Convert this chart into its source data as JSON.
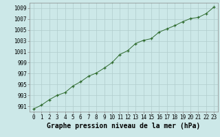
{
  "x": [
    0,
    1,
    2,
    3,
    4,
    5,
    6,
    7,
    8,
    9,
    10,
    11,
    12,
    13,
    14,
    15,
    16,
    17,
    18,
    19,
    20,
    21,
    22,
    23
  ],
  "y": [
    990.5,
    991.2,
    992.2,
    993.0,
    993.5,
    994.7,
    995.5,
    996.5,
    997.1,
    998.0,
    999.0,
    1000.5,
    1001.2,
    1002.5,
    1003.1,
    1003.4,
    1004.6,
    1005.2,
    1005.8,
    1006.5,
    1007.1,
    1007.3,
    1008.0,
    1009.2
  ],
  "line_color": "#2d6a2d",
  "marker": "+",
  "bg_color": "#cce8e8",
  "grid_color": "#b0cccc",
  "xlabel": "Graphe pression niveau de la mer (hPa)",
  "yticks": [
    991,
    993,
    995,
    997,
    999,
    1001,
    1003,
    1005,
    1007,
    1009
  ],
  "xticks": [
    0,
    1,
    2,
    3,
    4,
    5,
    6,
    7,
    8,
    9,
    10,
    11,
    12,
    13,
    14,
    15,
    16,
    17,
    18,
    19,
    20,
    21,
    22,
    23
  ],
  "ylim": [
    990,
    1010
  ],
  "xlim": [
    -0.5,
    23.5
  ],
  "tick_fontsize": 5.5,
  "xlabel_fontsize": 7
}
